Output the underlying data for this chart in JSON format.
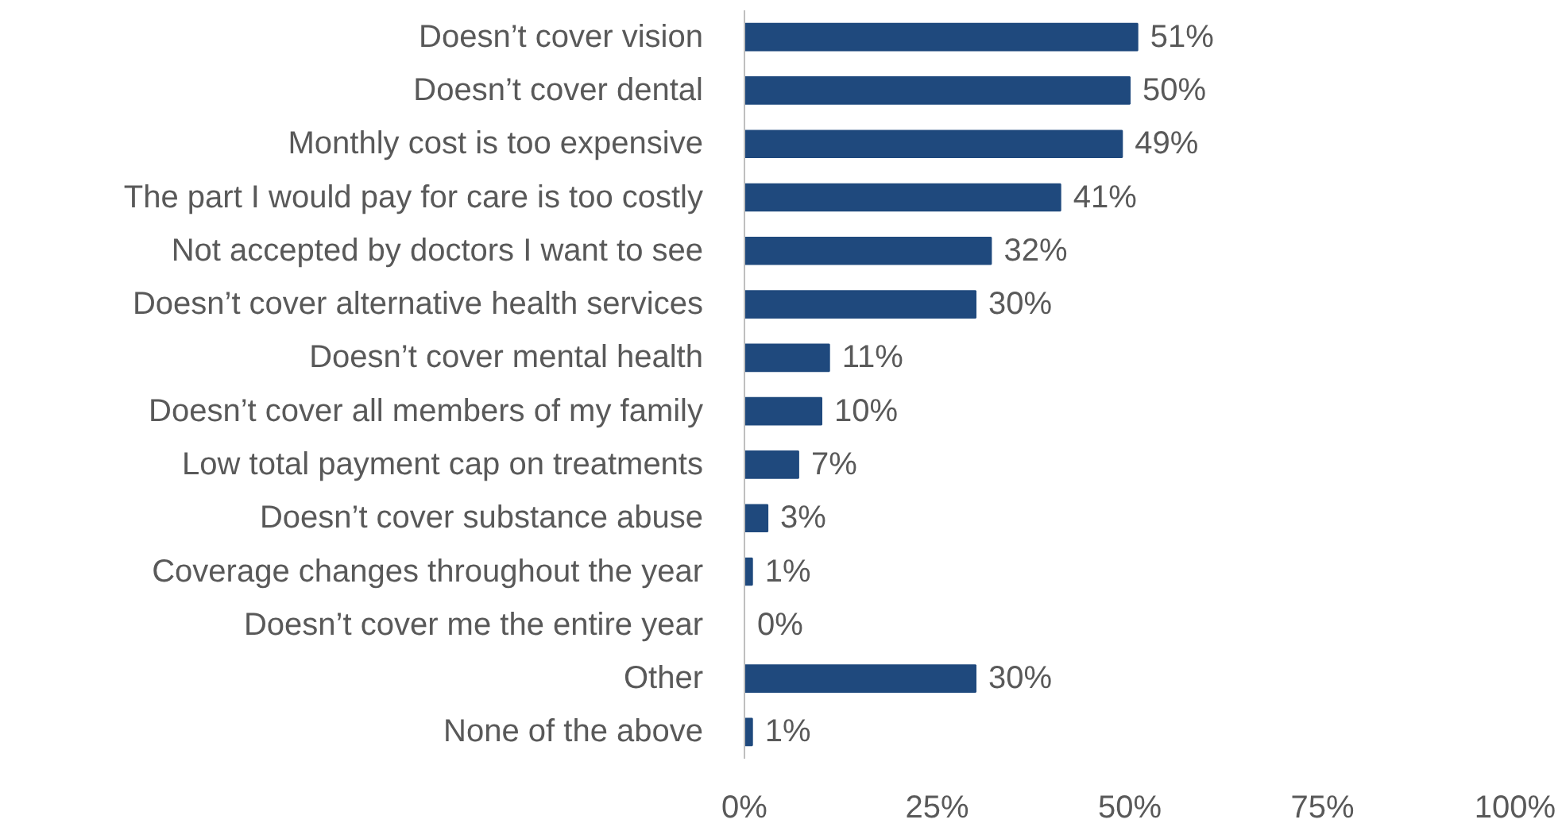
{
  "chart_data": {
    "type": "bar",
    "orientation": "horizontal",
    "categories": [
      "Doesn’t cover vision",
      "Doesn’t cover dental",
      "Monthly cost is too expensive",
      "The part I would pay for care is too costly",
      "Not accepted by doctors I want to see",
      "Doesn’t cover alternative health services",
      "Doesn’t cover mental health",
      "Doesn’t cover all members of my family",
      "Low total payment cap on treatments",
      "Doesn’t cover substance abuse",
      "Coverage changes throughout the year",
      "Doesn’t cover me the entire year",
      "Other",
      "None of the above"
    ],
    "values": [
      51,
      50,
      49,
      41,
      32,
      30,
      11,
      10,
      7,
      3,
      1,
      0,
      30,
      1
    ],
    "value_labels": [
      "51%",
      "50%",
      "49%",
      "41%",
      "32%",
      "30%",
      "11%",
      "10%",
      "7%",
      "3%",
      "1%",
      "0%",
      "30%",
      "1%"
    ],
    "color": "#1f497d",
    "xlim": [
      0,
      100
    ],
    "xticks": [
      {
        "value": 0,
        "label": "0%"
      },
      {
        "value": 25,
        "label": "25%"
      },
      {
        "value": 50,
        "label": "50%"
      },
      {
        "value": 75,
        "label": "75%"
      },
      {
        "value": 100,
        "label": "100%"
      }
    ]
  }
}
